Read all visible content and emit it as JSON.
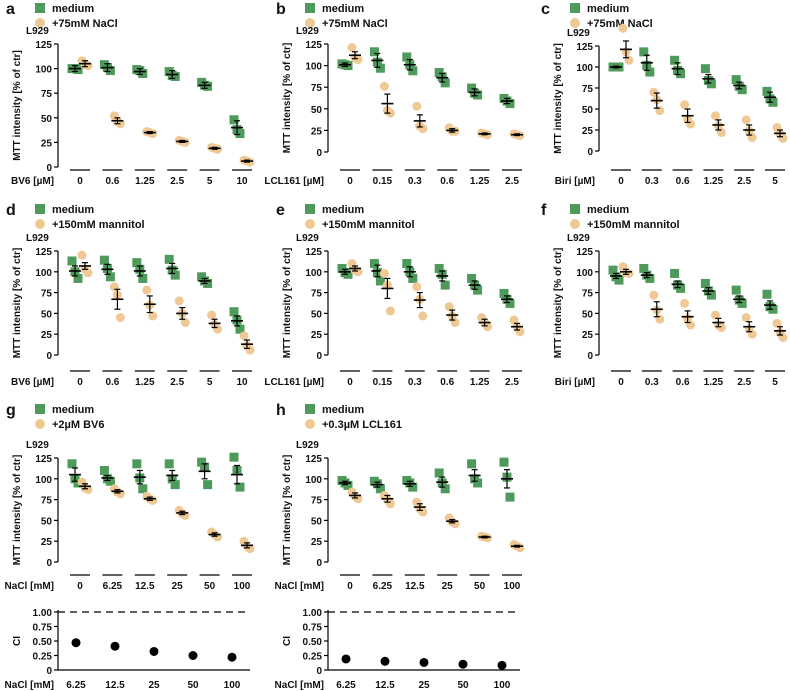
{
  "colors": {
    "medium": "#4e9a5b",
    "treat": "#efc995",
    "mean": "#000000"
  },
  "chart_data": [
    {
      "panel": "a",
      "cell": "L929",
      "type": "scatter",
      "ylabel": "MTT intensity [% of ctr]",
      "ylim": [
        0,
        125
      ],
      "yticks": [
        0,
        25,
        50,
        75,
        100,
        125
      ],
      "xlabel": "BV6 [µM]",
      "categories": [
        "0",
        "0.6",
        "1.25",
        "2.5",
        "5",
        "10"
      ],
      "series": [
        {
          "name": "medium",
          "marker": "square",
          "mean": [
            100,
            101,
            97,
            94,
            83,
            40
          ],
          "sem": [
            3,
            4,
            3,
            4,
            3,
            7
          ],
          "points": [
            [
              100,
              100,
              99
            ],
            [
              104,
              101,
              98
            ],
            [
              99,
              98,
              95
            ],
            [
              97,
              93,
              92
            ],
            [
              86,
              83,
              82
            ],
            [
              48,
              38,
              34
            ]
          ]
        },
        {
          "name": "+75mM NaCl",
          "marker": "circle",
          "mean": [
            105,
            47,
            35,
            26,
            19,
            6
          ],
          "sem": [
            3,
            3,
            1,
            1,
            1,
            1
          ],
          "points": [
            [
              108,
              104,
              103
            ],
            [
              52,
              46,
              44
            ],
            [
              36,
              35,
              34
            ],
            [
              27,
              26,
              25
            ],
            [
              20,
              19,
              18
            ],
            [
              7,
              6,
              5
            ]
          ]
        }
      ]
    },
    {
      "panel": "b",
      "cell": "L929",
      "type": "scatter",
      "ylabel": "MTT intensity [% of ctr]",
      "ylim": [
        0,
        125
      ],
      "yticks": [
        0,
        25,
        50,
        75,
        100,
        125
      ],
      "xlabel": "LCL161 [µM]",
      "categories": [
        "0",
        "0.15",
        "0.3",
        "0.6",
        "1.25",
        "2.5"
      ],
      "series": [
        {
          "name": "medium",
          "marker": "square",
          "mean": [
            101,
            106,
            101,
            86,
            69,
            59
          ],
          "sem": [
            2,
            8,
            6,
            5,
            4,
            3
          ],
          "points": [
            [
              102,
              101,
              100
            ],
            [
              116,
              104,
              97
            ],
            [
              110,
              101,
              94
            ],
            [
              92,
              87,
              80
            ],
            [
              74,
              68,
              66
            ],
            [
              62,
              59,
              56
            ]
          ]
        },
        {
          "name": "+75mM NaCl",
          "marker": "circle",
          "mean": [
            112,
            56,
            36,
            25,
            21,
            20
          ],
          "sem": [
            4,
            11,
            7,
            2,
            1,
            1
          ],
          "points": [
            [
              121,
              109,
              107
            ],
            [
              76,
              48,
              45
            ],
            [
              53,
              30,
              27
            ],
            [
              28,
              24,
              24
            ],
            [
              22,
              21,
              20
            ],
            [
              21,
              20,
              19
            ]
          ]
        }
      ]
    },
    {
      "panel": "c",
      "cell": "L929",
      "type": "scatter",
      "ylabel": "MTT intensity [% of ctr]",
      "ylim": [
        0,
        125
      ],
      "yticks": [
        0,
        25,
        50,
        75,
        100,
        125
      ],
      "xlabel": "Biri [µM]",
      "categories": [
        "0",
        "0.3",
        "0.6",
        "1.25",
        "2.5",
        "5"
      ],
      "series": [
        {
          "name": "medium",
          "marker": "square",
          "mean": [
            100,
            105,
            98,
            86,
            78,
            64
          ],
          "sem": [
            1,
            9,
            7,
            5,
            4,
            6
          ],
          "points": [
            [
              100,
              100,
              100
            ],
            [
              118,
              102,
              94
            ],
            [
              108,
              96,
              92
            ],
            [
              98,
              84,
              80
            ],
            [
              85,
              77,
              73
            ],
            [
              71,
              62,
              58
            ]
          ]
        },
        {
          "name": "+75mM NaCl",
          "marker": "circle",
          "mean": [
            121,
            60,
            42,
            31,
            25,
            21
          ],
          "sem": [
            10,
            9,
            8,
            6,
            6,
            4
          ],
          "points": [
            [
              146,
              118,
              108
            ],
            [
              70,
              61,
              48
            ],
            [
              55,
              38,
              32
            ],
            [
              42,
              30,
              22
            ],
            [
              37,
              24,
              16
            ],
            [
              28,
              20,
              15
            ]
          ]
        }
      ]
    },
    {
      "panel": "d",
      "cell": "L929",
      "type": "scatter",
      "ylabel": "MTT intensity [% of ctr]",
      "ylim": [
        0,
        125
      ],
      "yticks": [
        0,
        25,
        50,
        75,
        100,
        125
      ],
      "xlabel": "BV6 [µM]",
      "categories": [
        "0",
        "0.6",
        "1.25",
        "2.5",
        "5",
        "10"
      ],
      "series": [
        {
          "name": "medium",
          "marker": "square",
          "mean": [
            101,
            103,
            101,
            104,
            89,
            41
          ],
          "sem": [
            6,
            6,
            6,
            6,
            3,
            6
          ],
          "points": [
            [
              113,
              100,
              92
            ],
            [
              114,
              104,
              94
            ],
            [
              111,
              103,
              92
            ],
            [
              115,
              102,
              96
            ],
            [
              94,
              89,
              86
            ],
            [
              52,
              42,
              31
            ]
          ]
        },
        {
          "name": "+150mM mannitol",
          "marker": "circle",
          "mean": [
            107,
            67,
            61,
            50,
            38,
            13
          ],
          "sem": [
            4,
            12,
            10,
            7,
            5,
            5
          ],
          "points": [
            [
              120,
              103,
              99
            ],
            [
              82,
              72,
              45
            ],
            [
              78,
              60,
              47
            ],
            [
              65,
              50,
              39
            ],
            [
              48,
              37,
              31
            ],
            [
              23,
              11,
              6
            ]
          ]
        }
      ]
    },
    {
      "panel": "e",
      "cell": "L929",
      "type": "scatter",
      "ylabel": "MTT intensity [% of ctr]",
      "ylim": [
        0,
        125
      ],
      "yticks": [
        0,
        25,
        50,
        75,
        100,
        125
      ],
      "xlabel": "LCL161 [µM]",
      "categories": [
        "0",
        "0.15",
        "0.3",
        "0.6",
        "1.25",
        "2.5"
      ],
      "series": [
        {
          "name": "medium",
          "marker": "square",
          "mean": [
            100,
            101,
            100,
            95,
            84,
            67
          ],
          "sem": [
            3,
            7,
            6,
            6,
            5,
            4
          ],
          "points": [
            [
              104,
              99,
              97
            ],
            [
              110,
              99,
              89
            ],
            [
              110,
              100,
              92
            ],
            [
              104,
              97,
              84
            ],
            [
              92,
              84,
              78
            ],
            [
              74,
              67,
              62
            ]
          ]
        },
        {
          "name": "+150mM mannitol",
          "marker": "circle",
          "mean": [
            104,
            80,
            66,
            48,
            39,
            34
          ],
          "sem": [
            3,
            12,
            9,
            6,
            4,
            4
          ],
          "points": [
            [
              110,
              102,
              100
            ],
            [
              98,
              84,
              53
            ],
            [
              82,
              67,
              47
            ],
            [
              58,
              47,
              39
            ],
            [
              45,
              39,
              34
            ],
            [
              42,
              34,
              28
            ]
          ]
        }
      ]
    },
    {
      "panel": "f",
      "cell": "L929",
      "type": "scatter",
      "ylabel": "MTT intensity [% of ctr]",
      "ylim": [
        0,
        125
      ],
      "yticks": [
        0,
        25,
        50,
        75,
        100,
        125
      ],
      "xlabel": "Biri [µM]",
      "categories": [
        "0",
        "0.3",
        "0.6",
        "1.25",
        "2.5",
        "5"
      ],
      "series": [
        {
          "name": "medium",
          "marker": "square",
          "mean": [
            95,
            96,
            85,
            77,
            67,
            60
          ],
          "sem": [
            3,
            3,
            4,
            4,
            4,
            5
          ],
          "points": [
            [
              102,
              94,
              90
            ],
            [
              104,
              96,
              92
            ],
            [
              98,
              84,
              80
            ],
            [
              86,
              77,
              72
            ],
            [
              78,
              66,
              62
            ],
            [
              73,
              58,
              55
            ]
          ]
        },
        {
          "name": "+150mM mannitol",
          "marker": "circle",
          "mean": [
            100,
            55,
            46,
            39,
            34,
            29
          ],
          "sem": [
            3,
            9,
            7,
            5,
            6,
            5
          ],
          "points": [
            [
              106,
              99,
              98
            ],
            [
              72,
              54,
              43
            ],
            [
              62,
              44,
              36
            ],
            [
              48,
              36,
              33
            ],
            [
              45,
              31,
              25
            ],
            [
              38,
              27,
              21
            ]
          ]
        }
      ]
    },
    {
      "panel": "g",
      "cell": "L929",
      "type": "scatter",
      "ylabel": "MTT intensity [% of ctr]",
      "ylim": [
        0,
        125
      ],
      "yticks": [
        0,
        25,
        50,
        75,
        100,
        125
      ],
      "xlabel": "NaCl [mM]",
      "categories": [
        "0",
        "6.25",
        "12.5",
        "25",
        "50",
        "100"
      ],
      "series": [
        {
          "name": "medium",
          "marker": "square",
          "mean": [
            105,
            101,
            102,
            104,
            109,
            105
          ],
          "sem": [
            8,
            3,
            8,
            6,
            9,
            11
          ],
          "points": [
            [
              118,
              100,
              95
            ],
            [
              110,
              100,
              97
            ],
            [
              118,
              101,
              88
            ],
            [
              118,
              100,
              93
            ],
            [
              120,
              114,
              93
            ],
            [
              126,
              110,
              90
            ]
          ]
        },
        {
          "name": "+2µM BV6",
          "marker": "circle",
          "mean": [
            91,
            85,
            76,
            59,
            33,
            20
          ],
          "sem": [
            3,
            2,
            2,
            2,
            2,
            3
          ],
          "points": [
            [
              96,
              89,
              87
            ],
            [
              88,
              84,
              82
            ],
            [
              79,
              76,
              74
            ],
            [
              62,
              58,
              56
            ],
            [
              36,
              33,
              30
            ],
            [
              25,
              19,
              16
            ]
          ]
        }
      ]
    },
    {
      "panel": "h",
      "cell": "L929",
      "type": "scatter",
      "ylabel": "MTT intensity [% of ctr]",
      "ylim": [
        0,
        125
      ],
      "yticks": [
        0,
        25,
        50,
        75,
        100,
        125
      ],
      "xlabel": "NaCl [mM]",
      "categories": [
        "0",
        "6.25",
        "12.5",
        "25",
        "50",
        "100"
      ],
      "series": [
        {
          "name": "medium",
          "marker": "square",
          "mean": [
            95,
            93,
            94,
            96,
            104,
            100
          ],
          "sem": [
            2,
            3,
            3,
            6,
            7,
            11
          ],
          "points": [
            [
              98,
              95,
              92
            ],
            [
              97,
              94,
              88
            ],
            [
              98,
              95,
              90
            ],
            [
              107,
              95,
              88
            ],
            [
              118,
              100,
              95
            ],
            [
              120,
              102,
              78
            ]
          ]
        },
        {
          "name": "+0.3µM LCL161",
          "marker": "circle",
          "mean": [
            80,
            76,
            66,
            49,
            30,
            19
          ],
          "sem": [
            3,
            4,
            4,
            2,
            1,
            1
          ],
          "points": [
            [
              84,
              79,
              76
            ],
            [
              80,
              75,
              70
            ],
            [
              72,
              64,
              60
            ],
            [
              53,
              48,
              46
            ],
            [
              31,
              30,
              29
            ],
            [
              21,
              19,
              17
            ]
          ]
        }
      ]
    },
    {
      "panel": "g-ci",
      "type": "scatter",
      "ylabel": "CI",
      "ylim": [
        0,
        1.0
      ],
      "yticks": [
        "0",
        "0.25",
        "0.50",
        "0.75",
        "1.00"
      ],
      "reference_line": 1.0,
      "xlabel": "NaCl [mM]",
      "categories": [
        "6.25",
        "12.5",
        "25",
        "50",
        "100"
      ],
      "values": [
        0.47,
        0.41,
        0.32,
        0.25,
        0.22
      ]
    },
    {
      "panel": "h-ci",
      "type": "scatter",
      "ylabel": "CI",
      "ylim": [
        0,
        1.0
      ],
      "yticks": [
        "0",
        "0.25",
        "0.50",
        "0.75",
        "1.00"
      ],
      "reference_line": 1.0,
      "xlabel": "NaCl [mM]",
      "categories": [
        "6.25",
        "12.5",
        "25",
        "50",
        "100"
      ],
      "values": [
        0.19,
        0.15,
        0.13,
        0.1,
        0.08
      ]
    }
  ]
}
